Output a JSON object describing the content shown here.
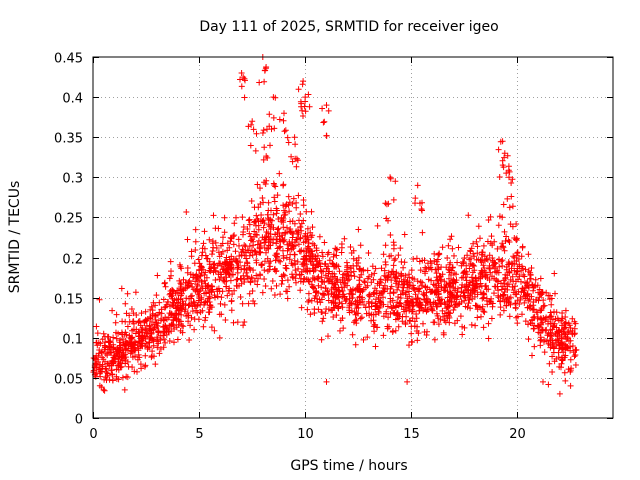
{
  "chart_data": {
    "type": "scatter",
    "title": "Day 111 of 2025, SRMTID for receiver igeo",
    "xlabel": "GPS time / hours",
    "ylabel": "SRMTID / TECUs",
    "xlim": [
      0,
      24.5
    ],
    "ylim": [
      0,
      0.45
    ],
    "x_ticks": [
      0,
      5,
      10,
      15,
      20
    ],
    "x_tick_labels": [
      "0",
      "5",
      "10",
      "15",
      "20"
    ],
    "y_ticks": [
      0,
      0.05,
      0.1,
      0.15,
      0.2,
      0.25,
      0.3,
      0.35,
      0.4,
      0.45
    ],
    "y_tick_labels": [
      "0",
      "0.05",
      "0.1",
      "0.15",
      "0.2",
      "0.25",
      "0.3",
      "0.35",
      "0.4",
      "0.45"
    ],
    "grid": true,
    "marker": "plus",
    "series": [
      {
        "name": "SRMTID",
        "color": "#ff0000",
        "x_range": [
          0,
          22.8
        ],
        "trend": [
          [
            0.0,
            0.075
          ],
          [
            1.0,
            0.075
          ],
          [
            2.0,
            0.095
          ],
          [
            3.0,
            0.105
          ],
          [
            4.0,
            0.14
          ],
          [
            5.0,
            0.165
          ],
          [
            6.0,
            0.175
          ],
          [
            7.0,
            0.19
          ],
          [
            8.0,
            0.22
          ],
          [
            9.0,
            0.23
          ],
          [
            10.0,
            0.2
          ],
          [
            11.0,
            0.165
          ],
          [
            12.0,
            0.165
          ],
          [
            13.0,
            0.145
          ],
          [
            14.0,
            0.165
          ],
          [
            15.0,
            0.14
          ],
          [
            16.0,
            0.155
          ],
          [
            17.0,
            0.16
          ],
          [
            18.0,
            0.165
          ],
          [
            19.0,
            0.175
          ],
          [
            20.0,
            0.175
          ],
          [
            21.0,
            0.13
          ],
          [
            22.0,
            0.1
          ],
          [
            22.8,
            0.09
          ]
        ],
        "highlights": [
          {
            "x": 7.0,
            "y": 0.43
          },
          {
            "x": 8.0,
            "y": 0.45
          },
          {
            "x": 8.5,
            "y": 0.4
          },
          {
            "x": 9.0,
            "y": 0.38
          },
          {
            "x": 9.9,
            "y": 0.42
          },
          {
            "x": 10.0,
            "y": 0.4
          },
          {
            "x": 11.0,
            "y": 0.39
          },
          {
            "x": 14.0,
            "y": 0.3
          },
          {
            "x": 15.3,
            "y": 0.29
          },
          {
            "x": 19.3,
            "y": 0.345
          },
          {
            "x": 19.4,
            "y": 0.33
          },
          {
            "x": 19.6,
            "y": 0.3
          },
          {
            "x": 7.5,
            "y": 0.37
          },
          {
            "x": 8.2,
            "y": 0.36
          },
          {
            "x": 9.5,
            "y": 0.35
          }
        ],
        "lows": [
          {
            "x": 0.5,
            "y": 0.035
          },
          {
            "x": 1.5,
            "y": 0.035
          },
          {
            "x": 11.0,
            "y": 0.045
          },
          {
            "x": 14.8,
            "y": 0.045
          },
          {
            "x": 21.2,
            "y": 0.045
          },
          {
            "x": 22.0,
            "y": 0.03
          },
          {
            "x": 22.5,
            "y": 0.04
          }
        ],
        "count": 2600
      }
    ]
  }
}
